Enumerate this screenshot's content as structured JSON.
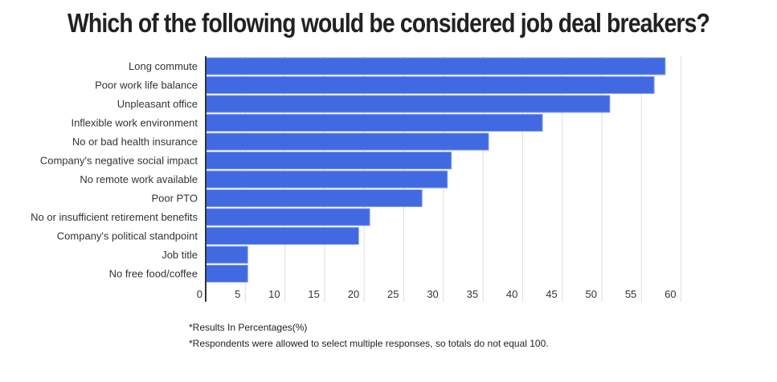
{
  "chart_data": {
    "type": "bar",
    "orientation": "horizontal",
    "title": "Which of the following would be considered job deal breakers?",
    "categories": [
      "Long commute",
      "Poor work life balance",
      "Unpleasant office",
      "Inflexible work environment",
      "No or bad health insurance",
      "Company's negative social impact",
      "No remote work available",
      "Poor PTO",
      "No or insufficient retirement benefits",
      "Company's political standpoint",
      "Job title",
      "No free food/coffee"
    ],
    "values": [
      58,
      56.6,
      51,
      42.5,
      35.7,
      31,
      30.5,
      27.3,
      20.7,
      19.3,
      5.3,
      5.3
    ],
    "xlim": [
      0,
      60
    ],
    "xticks": [
      0,
      5,
      10,
      15,
      20,
      25,
      30,
      35,
      40,
      45,
      50,
      55,
      60
    ],
    "grid": true,
    "bar_color": "#4169e1",
    "xlabel": "",
    "ylabel": ""
  },
  "notes": [
    "*Results In Percentages(%)",
    "*Respondents were allowed to select multiple responses, so totals do not equal 100."
  ]
}
